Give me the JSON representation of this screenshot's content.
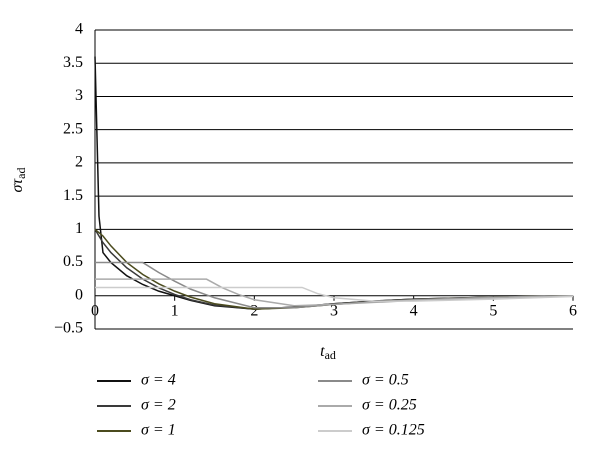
{
  "chart_data": {
    "type": "line",
    "x_label": "t",
    "x_label_sub": "ad",
    "y_label": "στ",
    "y_label_sub": "ad",
    "xlim": [
      0,
      6
    ],
    "xticks": [
      0,
      1,
      2,
      3,
      4,
      5,
      6
    ],
    "ylim": [
      -0.5,
      4
    ],
    "yticks": [
      {
        "value": -0.5,
        "label": "−0.5"
      },
      0,
      0.5,
      1,
      1.5,
      2,
      2.5,
      3,
      3.5,
      4
    ],
    "grid": true,
    "series": [
      {
        "name": "σ = 4",
        "color": "#111111",
        "x": [
          0,
          0.05,
          0.1,
          0.2,
          0.4,
          0.6,
          0.8,
          1,
          1.2,
          1.5,
          2,
          2.5,
          3,
          3.5,
          4,
          5,
          6
        ],
        "values": [
          3.6,
          1.2,
          0.65,
          0.5,
          0.3,
          0.17,
          0.07,
          0,
          -0.07,
          -0.15,
          -0.2,
          -0.17,
          -0.12,
          -0.08,
          -0.05,
          -0.02,
          0
        ]
      },
      {
        "name": "σ = 2",
        "color": "#3a3a3a",
        "x": [
          0,
          0.05,
          0.1,
          0.2,
          0.4,
          0.6,
          0.8,
          1,
          1.2,
          1.5,
          2,
          2.5,
          3,
          3.5,
          4,
          5,
          6
        ],
        "values": [
          1,
          0.9,
          0.8,
          0.65,
          0.42,
          0.25,
          0.12,
          0.02,
          -0.06,
          -0.14,
          -0.2,
          -0.17,
          -0.12,
          -0.08,
          -0.05,
          -0.02,
          0
        ]
      },
      {
        "name": "σ = 1",
        "color": "#4b4b1e",
        "x": [
          0,
          0.05,
          0.1,
          0.2,
          0.4,
          0.6,
          0.8,
          1,
          1.2,
          1.5,
          2,
          2.5,
          3,
          3.5,
          4,
          5,
          6
        ],
        "values": [
          1,
          0.95,
          0.9,
          0.75,
          0.5,
          0.32,
          0.18,
          0.07,
          -0.02,
          -0.12,
          -0.2,
          -0.18,
          -0.13,
          -0.09,
          -0.06,
          -0.02,
          0
        ]
      },
      {
        "name": "σ = 0.5",
        "color": "#8a8a8a",
        "x": [
          0,
          0.6,
          0.8,
          1,
          1.2,
          1.5,
          2,
          2.5,
          3,
          3.5,
          4,
          5,
          6
        ],
        "values": [
          0.5,
          0.5,
          0.35,
          0.22,
          0.1,
          -0.03,
          -0.18,
          -0.18,
          -0.13,
          -0.09,
          -0.06,
          -0.02,
          0
        ]
      },
      {
        "name": "σ = 0.25",
        "color": "#aaaaaa",
        "x": [
          0,
          1.4,
          1.6,
          1.8,
          2,
          2.5,
          3,
          3.5,
          4,
          5,
          6
        ],
        "values": [
          0.25,
          0.25,
          0.12,
          0.02,
          -0.06,
          -0.15,
          -0.13,
          -0.1,
          -0.07,
          -0.03,
          0
        ]
      },
      {
        "name": "σ = 0.125",
        "color": "#cccccc",
        "x": [
          0,
          2.6,
          2.8,
          3,
          3.5,
          4,
          5,
          6
        ],
        "values": [
          0.125,
          0.125,
          0.03,
          -0.03,
          -0.08,
          -0.08,
          -0.05,
          -0.01
        ]
      }
    ]
  }
}
